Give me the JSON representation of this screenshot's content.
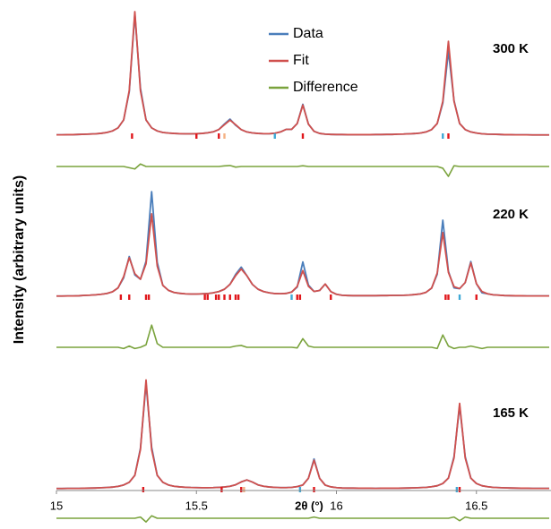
{
  "chart_data": {
    "type": "line",
    "ylabel": "Intensity (arbitrary units)",
    "xlabel": "2θ (°)",
    "xlim": [
      15,
      16.76
    ],
    "xticks": [
      15,
      15.5,
      16,
      16.5
    ],
    "legend": "top",
    "series": [
      {
        "name": "Data",
        "color": "#4a7ebb"
      },
      {
        "name": "Fit",
        "color": "#d0504d"
      },
      {
        "name": "Difference",
        "color": "#7aa33d"
      }
    ],
    "x": [
      15,
      15.02,
      15.04,
      15.06,
      15.08,
      15.1,
      15.12,
      15.14,
      15.16,
      15.18,
      15.2,
      15.22,
      15.24,
      15.26,
      15.28,
      15.3,
      15.32,
      15.34,
      15.36,
      15.38,
      15.4,
      15.42,
      15.44,
      15.46,
      15.48,
      15.5,
      15.52,
      15.54,
      15.56,
      15.58,
      15.6,
      15.62,
      15.64,
      15.66,
      15.68,
      15.7,
      15.72,
      15.74,
      15.76,
      15.78,
      15.8,
      15.82,
      15.84,
      15.86,
      15.88,
      15.9,
      15.92,
      15.94,
      15.96,
      15.98,
      16,
      16.02,
      16.04,
      16.06,
      16.08,
      16.1,
      16.12,
      16.14,
      16.16,
      16.18,
      16.2,
      16.22,
      16.24,
      16.26,
      16.28,
      16.3,
      16.32,
      16.34,
      16.36,
      16.38,
      16.4,
      16.42,
      16.44,
      16.46,
      16.48,
      16.5,
      16.52,
      16.54,
      16.56,
      16.58,
      16.6,
      16.62,
      16.64,
      16.66,
      16.68,
      16.7,
      16.72,
      16.74,
      16.76
    ],
    "panels": [
      {
        "label": "300 K",
        "values": [
          [
            0.3,
            0.3,
            0.4,
            0.4,
            0.6,
            0.7,
            0.9,
            1.1,
            1.5,
            2.2,
            3.4,
            5.9,
            12.3,
            35,
            98,
            38,
            12.3,
            5.9,
            3.4,
            2.2,
            1.7,
            1.4,
            1.2,
            1.1,
            1.1,
            1.2,
            1.4,
            1.9,
            2.7,
            4.6,
            9,
            13,
            8,
            4.5,
            2.6,
            1.8,
            1.4,
            1.2,
            1.2,
            1.5,
            2.6,
            4.7,
            4.7,
            9.4,
            25,
            8.9,
            3.1,
            1.4,
            0.8,
            0.6,
            0.5,
            0.5,
            0.4,
            0.4,
            0.4,
            0.4,
            0.4,
            0.5,
            0.5,
            0.6,
            0.6,
            0.8,
            0.9,
            1.1,
            1.3,
            1.7,
            2.6,
            4.5,
            9.4,
            26,
            68,
            28,
            9.4,
            4.5,
            2.6,
            1.7,
            1.1,
            0.8,
            0.7,
            0.6,
            0.4,
            0.4,
            0.3,
            0.3,
            0.3,
            0.2,
            0.2,
            0.2,
            0.2
          ],
          [
            0.3,
            0.3,
            0.4,
            0.4,
            0.6,
            0.7,
            0.9,
            1.1,
            1.5,
            2.2,
            3.4,
            5.9,
            12.3,
            36,
            100,
            36,
            12.3,
            5.9,
            3.4,
            2.2,
            1.7,
            1.4,
            1.2,
            1.1,
            1.1,
            1.2,
            1.4,
            1.9,
            2.7,
            4.6,
            8.5,
            12.2,
            8.5,
            4.5,
            2.6,
            1.8,
            1.4,
            1.2,
            1.2,
            1.5,
            2.6,
            4.7,
            4.7,
            9.4,
            24.4,
            8.9,
            3.1,
            1.4,
            0.8,
            0.6,
            0.5,
            0.5,
            0.4,
            0.4,
            0.4,
            0.4,
            0.4,
            0.5,
            0.5,
            0.6,
            0.6,
            0.8,
            0.9,
            1.1,
            1.3,
            1.7,
            2.6,
            4.5,
            9.4,
            27.4,
            76,
            27.4,
            9.4,
            4.5,
            2.6,
            1.7,
            1.1,
            0.8,
            0.7,
            0.6,
            0.4,
            0.4,
            0.3,
            0.3,
            0.3,
            0.2,
            0.2,
            0.2,
            0.2
          ],
          [
            0,
            0,
            0,
            0,
            0,
            0,
            0,
            0,
            0,
            0,
            0,
            0,
            0,
            -1,
            -2,
            2,
            0,
            0,
            0,
            0,
            0,
            0,
            0,
            0,
            0,
            0,
            0,
            0,
            0,
            0,
            0.5,
            0.8,
            -0.5,
            0,
            0,
            0,
            0,
            0,
            0,
            0,
            0,
            0,
            0,
            0,
            0.6,
            0,
            0,
            0,
            0,
            0,
            0,
            0,
            0,
            0,
            0,
            0,
            0,
            0,
            0,
            0,
            0,
            0,
            0,
            0,
            0,
            0,
            0,
            0,
            0,
            -1.4,
            -8,
            0.6,
            0,
            0,
            0,
            0,
            0,
            0,
            0,
            0,
            0,
            0,
            0,
            0,
            0,
            0,
            0,
            0,
            0
          ]
        ],
        "reflections": [
          {
            "color": "#e0161b",
            "positions": [
              15.27,
              15.5,
              15.58,
              15.88,
              16.4
            ]
          },
          {
            "color": "#f4b183",
            "positions": [
              15.6
            ]
          },
          {
            "color": "#3fa9d6",
            "positions": [
              15.78,
              16.38
            ]
          }
        ]
      },
      {
        "label": "220 K",
        "values": [
          [
            0.2,
            0.2,
            0.3,
            0.3,
            0.4,
            0.7,
            0.9,
            1.2,
            1.6,
            2.3,
            3.6,
            6.8,
            14.9,
            32.2,
            17.3,
            13.8,
            28.3,
            84.7,
            27.5,
            8.8,
            4.8,
            3.1,
            2.4,
            2.0,
            1.8,
            1.8,
            2.0,
            2.2,
            2.8,
            3.8,
            5.7,
            9.7,
            17.7,
            23.6,
            16.7,
            9.6,
            5.7,
            3.8,
            2.8,
            2.2,
            2.1,
            2.3,
            3.4,
            7.5,
            27.8,
            9.1,
            3.9,
            4.7,
            9.9,
            3.8,
            1.6,
            0.8,
            0.6,
            0.5,
            0.5,
            0.5,
            0.5,
            0.5,
            0.6,
            0.6,
            0.7,
            0.7,
            0.8,
            1.0,
            1.4,
            1.9,
            3.2,
            6.6,
            17.8,
            61.6,
            20.3,
            6.8,
            6.2,
            11.1,
            28.1,
            10.2,
            2.8,
            2.0,
            1.2,
            0.9,
            0.6,
            0.5,
            0.4,
            0.4,
            0.3,
            0.3,
            0.3,
            0.3,
            0.3
          ],
          [
            0.2,
            0.2,
            0.3,
            0.3,
            0.4,
            0.7,
            0.9,
            1.2,
            1.6,
            2.3,
            3.6,
            6.8,
            15.9,
            31.2,
            18.3,
            13.8,
            26.3,
            66.7,
            24.5,
            8.8,
            4.8,
            3.1,
            2.4,
            2.0,
            1.8,
            1.8,
            2.0,
            2.2,
            2.8,
            3.8,
            5.7,
            9.7,
            16.7,
            22.1,
            16.7,
            9.6,
            5.7,
            3.8,
            2.8,
            2.2,
            2.1,
            2.3,
            3.4,
            8.0,
            20.8,
            8.1,
            3.9,
            4.7,
            9.9,
            3.8,
            1.6,
            0.8,
            0.6,
            0.5,
            0.5,
            0.5,
            0.5,
            0.5,
            0.6,
            0.6,
            0.7,
            0.7,
            0.8,
            1.0,
            1.4,
            1.9,
            3.2,
            6.6,
            18.8,
            51.6,
            19.3,
            7.8,
            6.2,
            11.1,
            27.1,
            10.2,
            3.8,
            2.0,
            1.2,
            0.9,
            0.6,
            0.5,
            0.4,
            0.4,
            0.3,
            0.3,
            0.3,
            0.3,
            0.3
          ],
          [
            0,
            0,
            0,
            0,
            0,
            0,
            0,
            0,
            0,
            0,
            0,
            0,
            -1,
            1,
            -1,
            0,
            2,
            18,
            3,
            0,
            0,
            0,
            0,
            0,
            0,
            0,
            0,
            0,
            0,
            0,
            0,
            0,
            1,
            1.5,
            0,
            0,
            0,
            0,
            0,
            0,
            0,
            0,
            0,
            -0.5,
            7,
            1,
            0,
            0,
            0,
            0,
            0,
            0,
            0,
            0,
            0,
            0,
            0,
            0,
            0,
            0,
            0,
            0,
            0,
            0,
            0,
            0,
            0,
            0,
            -1,
            10,
            1,
            -1,
            0,
            0,
            1,
            0,
            -1,
            0,
            0,
            0,
            0,
            0,
            0,
            0,
            0,
            0,
            0,
            0,
            0
          ]
        ],
        "reflections": [
          {
            "color": "#e0161b",
            "positions": [
              15.23,
              15.26,
              15.32,
              15.33,
              15.53,
              15.54,
              15.57,
              15.58,
              15.6,
              15.62,
              15.64,
              15.65,
              15.86,
              15.87,
              15.98,
              16.39,
              16.4,
              16.5
            ]
          },
          {
            "color": "#3fa9d6",
            "positions": [
              15.84,
              16.44
            ]
          }
        ]
      },
      {
        "label": "165 K",
        "values": [
          [
            0.2,
            0.2,
            0.3,
            0.3,
            0.3,
            0.4,
            0.5,
            0.6,
            0.8,
            1.0,
            1.3,
            1.9,
            3.0,
            5.2,
            10.8,
            32.7,
            85,
            33.7,
            10.8,
            5.2,
            3.0,
            2.0,
            1.5,
            1.2,
            1.0,
            0.9,
            0.8,
            0.8,
            0.9,
            1.1,
            1.4,
            2.0,
            3.2,
            5.5,
            7.1,
            5.4,
            3.1,
            2.0,
            1.4,
            1.1,
            0.9,
            0.9,
            1.1,
            1.7,
            3.0,
            8.5,
            24.1,
            8.4,
            2.9,
            1.5,
            0.9,
            0.6,
            0.5,
            0.5,
            0.4,
            0.4,
            0.4,
            0.3,
            0.4,
            0.4,
            0.4,
            0.4,
            0.5,
            0.6,
            0.7,
            0.9,
            1.1,
            1.6,
            2.4,
            4.2,
            8.6,
            25.9,
            67.1,
            25.9,
            8.6,
            4.2,
            2.4,
            1.6,
            1.1,
            0.9,
            0.7,
            0.6,
            0.5,
            0.4,
            0.4,
            0.3,
            0.3,
            0.3,
            0.3
          ],
          [
            0.2,
            0.2,
            0.3,
            0.3,
            0.3,
            0.4,
            0.5,
            0.6,
            0.8,
            1.0,
            1.3,
            1.9,
            3.0,
            5.2,
            10.8,
            31.7,
            88,
            31.7,
            10.8,
            5.2,
            3.0,
            2.0,
            1.5,
            1.2,
            1.0,
            0.9,
            0.8,
            0.8,
            0.9,
            1.1,
            1.4,
            2.0,
            3.2,
            5.5,
            7.1,
            5.4,
            3.1,
            2.0,
            1.4,
            1.1,
            0.9,
            0.9,
            1.1,
            1.7,
            3.0,
            8.5,
            23.1,
            8.4,
            2.9,
            1.5,
            0.9,
            0.6,
            0.5,
            0.5,
            0.4,
            0.4,
            0.4,
            0.3,
            0.4,
            0.4,
            0.4,
            0.4,
            0.5,
            0.6,
            0.7,
            0.9,
            1.1,
            1.6,
            2.4,
            4.2,
            8.6,
            24.9,
            69.1,
            24.9,
            8.6,
            4.2,
            2.4,
            1.6,
            1.1,
            0.9,
            0.7,
            0.6,
            0.5,
            0.4,
            0.4,
            0.3,
            0.3,
            0.3,
            0.3
          ],
          [
            0,
            0,
            0,
            0,
            0,
            0,
            0,
            0,
            0,
            0,
            0,
            0,
            0,
            0,
            0,
            1,
            -3,
            2,
            0,
            0,
            0,
            0,
            0,
            0,
            0,
            0,
            0,
            0,
            0,
            0,
            0,
            0,
            0,
            0,
            0,
            0,
            0,
            0,
            0,
            0,
            0,
            0,
            0,
            0,
            0,
            0,
            1,
            0,
            0,
            0,
            0,
            0,
            0,
            0,
            0,
            0,
            0,
            0,
            0,
            0,
            0,
            0,
            0,
            0,
            0,
            0,
            0,
            0,
            0,
            0,
            0,
            1,
            -2,
            1,
            0,
            0,
            0,
            0,
            0,
            0,
            0,
            0,
            0,
            0,
            0,
            0,
            0,
            0,
            0
          ]
        ],
        "reflections": [
          {
            "color": "#e0161b",
            "positions": [
              15.31,
              15.59,
              15.66,
              15.92,
              16.44
            ]
          },
          {
            "color": "#f4b183",
            "positions": [
              15.67
            ]
          },
          {
            "color": "#3fa9d6",
            "positions": [
              15.87,
              16.43
            ]
          }
        ]
      }
    ]
  }
}
